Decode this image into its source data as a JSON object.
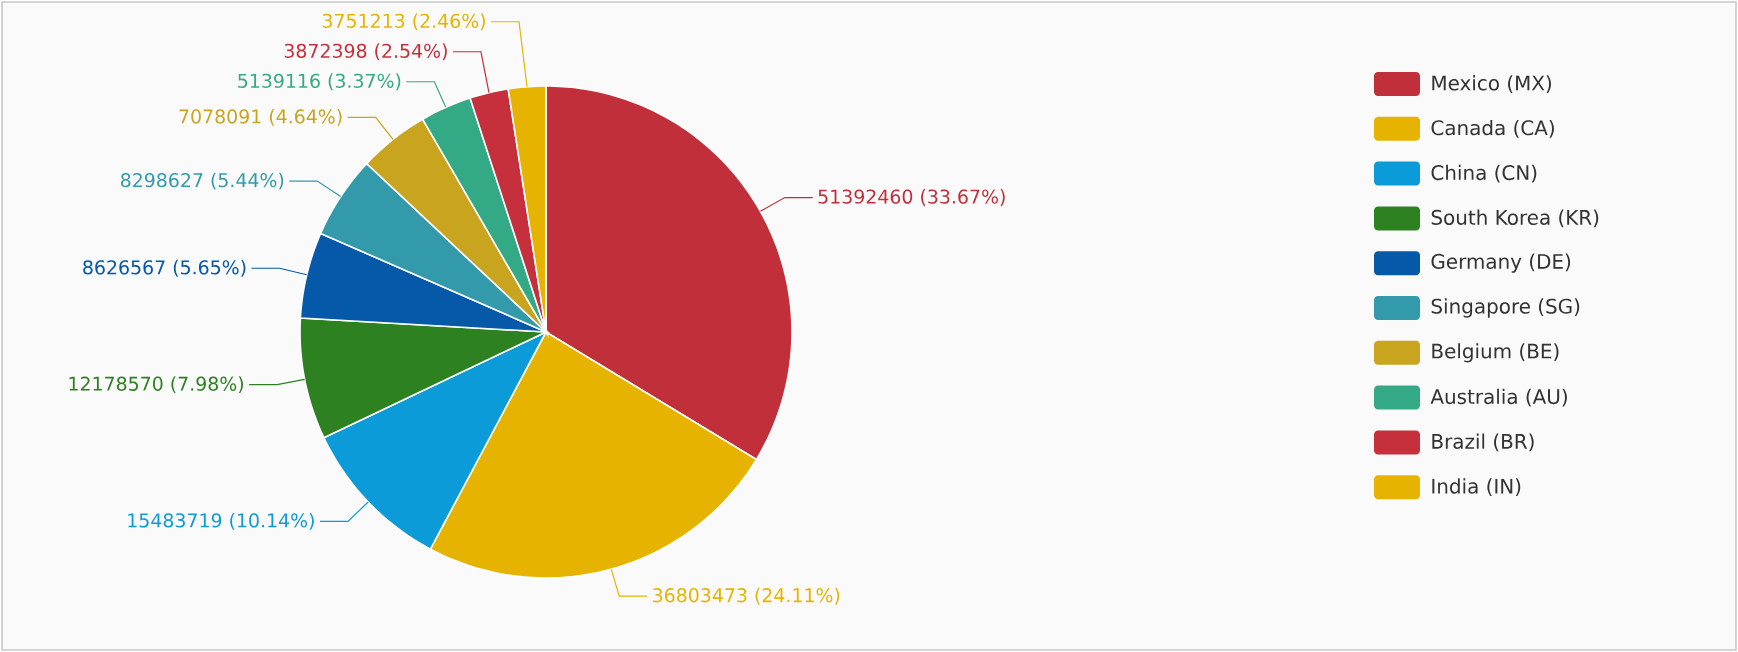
{
  "chart_data": {
    "type": "pie",
    "categories": [
      "Mexico (MX)",
      "Canada (CA)",
      "China (CN)",
      "South Korea (KR)",
      "Germany (DE)",
      "Singapore (SG)",
      "Belgium (BE)",
      "Australia (AU)",
      "Brazil (BR)",
      "India (IN)"
    ],
    "values": [
      51392460,
      36803473,
      15483719,
      12178570,
      8626567,
      8298627,
      7078091,
      5139116,
      3872398,
      3751213
    ],
    "colors": [
      "#c1303a",
      "#e6b400",
      "#0a9bd8",
      "#2d8121",
      "#0559a8",
      "#339aab",
      "#c9a41e",
      "#34a985",
      "#c6303c",
      "#e6b400"
    ],
    "value_labels": [
      "51392460 (33.67%)",
      "36803473 (24.11%)",
      "15483719 (10.14%)",
      "12178570 (7.98%)",
      "8626567 (5.65%)",
      "8298627 (5.44%)",
      "7078091 (4.64%)",
      "5139116 (3.37%)",
      "3872398 (2.54%)",
      "3751213 (2.46%)"
    ],
    "legend": "right"
  }
}
